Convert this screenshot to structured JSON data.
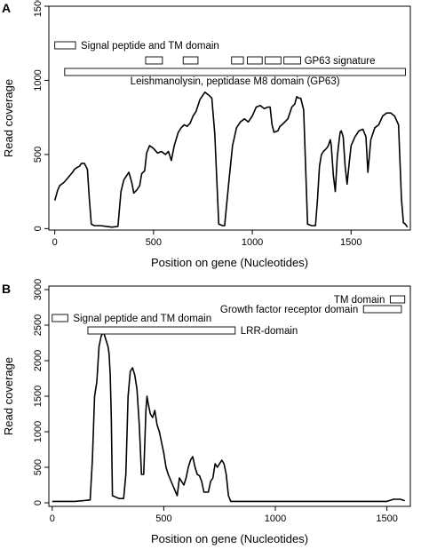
{
  "chart_data": [
    {
      "type": "line",
      "panel_label": "A",
      "xlabel": "Position on gene (Nucleotides)",
      "ylabel": "Read coverage",
      "xlim": [
        -30,
        1800
      ],
      "ylim": [
        -10,
        1500
      ],
      "xticks": [
        0,
        500,
        1000,
        1500
      ],
      "yticks": [
        0,
        500,
        1000,
        1500
      ],
      "grid": false,
      "series": [
        {
          "x": [
            0,
            15,
            25,
            45,
            65,
            90,
            100,
            110,
            125,
            135,
            150,
            165,
            175,
            185,
            200,
            230,
            260,
            290,
            320,
            335,
            350,
            375,
            390,
            400,
            415,
            430,
            440,
            455,
            465,
            480,
            500,
            520,
            540,
            560,
            575,
            590,
            605,
            625,
            640,
            655,
            670,
            685,
            700,
            715,
            735,
            750,
            760,
            780,
            795,
            800,
            810,
            830,
            850,
            860,
            880,
            900,
            920,
            940,
            960,
            980,
            1000,
            1020,
            1040,
            1060,
            1080,
            1090,
            1100,
            1110,
            1130,
            1140,
            1150,
            1165,
            1180,
            1200,
            1215,
            1225,
            1235,
            1245,
            1260,
            1280,
            1300,
            1320,
            1330,
            1340,
            1350,
            1360,
            1375,
            1385,
            1395,
            1400,
            1410,
            1420,
            1430,
            1440,
            1445,
            1450,
            1460,
            1470,
            1480,
            1490,
            1500,
            1520,
            1540,
            1560,
            1575,
            1585,
            1600,
            1620,
            1640,
            1660,
            1680,
            1700,
            1720,
            1740,
            1755,
            1765,
            1775,
            1785
          ],
          "values": [
            190,
            260,
            290,
            310,
            340,
            380,
            400,
            410,
            420,
            440,
            440,
            400,
            200,
            30,
            20,
            20,
            15,
            10,
            15,
            250,
            330,
            380,
            310,
            240,
            260,
            290,
            370,
            390,
            510,
            560,
            540,
            510,
            520,
            500,
            520,
            460,
            560,
            650,
            680,
            700,
            690,
            710,
            760,
            790,
            870,
            900,
            920,
            900,
            880,
            800,
            640,
            30,
            20,
            20,
            300,
            560,
            680,
            720,
            740,
            720,
            760,
            820,
            830,
            810,
            820,
            820,
            700,
            650,
            660,
            690,
            700,
            720,
            740,
            820,
            840,
            890,
            880,
            880,
            800,
            30,
            20,
            20,
            200,
            420,
            500,
            520,
            540,
            560,
            600,
            560,
            360,
            250,
            480,
            600,
            650,
            660,
            620,
            420,
            300,
            440,
            560,
            620,
            660,
            670,
            620,
            380,
            600,
            680,
            700,
            760,
            780,
            780,
            760,
            700,
            200,
            40,
            30,
            10
          ]
        }
      ],
      "annotations": [
        {
          "label": "Signal peptide and TM domain",
          "boxes": [
            [
              0,
              105
            ]
          ]
        },
        {
          "label": "GP63 signature",
          "boxes": [
            [
              460,
              545
            ],
            [
              650,
              725
            ],
            [
              895,
              955
            ],
            [
              975,
              1050
            ],
            [
              1065,
              1145
            ],
            [
              1160,
              1245
            ]
          ]
        },
        {
          "label": "Leishmanolysin, peptidase M8 domain (GP63)",
          "boxes": [
            [
              50,
              1775
            ]
          ]
        }
      ]
    },
    {
      "type": "line",
      "panel_label": "B",
      "xlabel": "Position on gene (Nucleotides)",
      "ylabel": "Read coverage",
      "xlim": [
        -15,
        1605
      ],
      "ylim": [
        -50,
        3050
      ],
      "xticks": [
        0,
        500,
        1000,
        1500
      ],
      "yticks": [
        0,
        500,
        1000,
        1500,
        2000,
        2500,
        3000
      ],
      "grid": false,
      "series": [
        {
          "x": [
            0,
            50,
            100,
            140,
            170,
            180,
            190,
            200,
            210,
            220,
            230,
            240,
            250,
            255,
            260,
            265,
            270,
            300,
            320,
            330,
            340,
            350,
            360,
            370,
            380,
            390,
            400,
            410,
            420,
            425,
            430,
            440,
            450,
            460,
            470,
            480,
            490,
            500,
            510,
            520,
            540,
            560,
            570,
            580,
            590,
            600,
            610,
            620,
            630,
            640,
            650,
            660,
            670,
            680,
            690,
            700,
            710,
            720,
            730,
            740,
            750,
            760,
            770,
            780,
            790,
            800,
            810,
            820,
            830,
            840,
            860,
            1000,
            1200,
            1400,
            1500,
            1530,
            1560,
            1580
          ],
          "values": [
            20,
            20,
            20,
            30,
            40,
            600,
            1500,
            1700,
            2200,
            2350,
            2400,
            2300,
            2200,
            2100,
            1800,
            1200,
            100,
            60,
            60,
            400,
            1500,
            1850,
            1900,
            1800,
            1600,
            1100,
            400,
            400,
            1300,
            1500,
            1400,
            1250,
            1200,
            1300,
            1100,
            1000,
            850,
            700,
            500,
            400,
            250,
            100,
            350,
            300,
            250,
            350,
            500,
            600,
            650,
            500,
            400,
            380,
            300,
            150,
            150,
            150,
            300,
            350,
            550,
            500,
            550,
            600,
            550,
            400,
            100,
            20,
            20,
            20,
            20,
            20,
            20,
            20,
            20,
            20,
            20,
            50,
            50,
            30
          ]
        }
      ],
      "annotations": [
        {
          "label": "Signal peptide and TM domain",
          "boxes": [
            [
              0,
              70
            ]
          ]
        },
        {
          "label": "LRR-domain",
          "boxes": [
            [
              160,
              820
            ]
          ]
        },
        {
          "label": "Growth factor receptor domain",
          "boxes": [
            [
              1395,
              1565
            ]
          ]
        },
        {
          "label": "TM domain",
          "boxes": [
            [
              1515,
              1580
            ]
          ]
        }
      ]
    }
  ]
}
